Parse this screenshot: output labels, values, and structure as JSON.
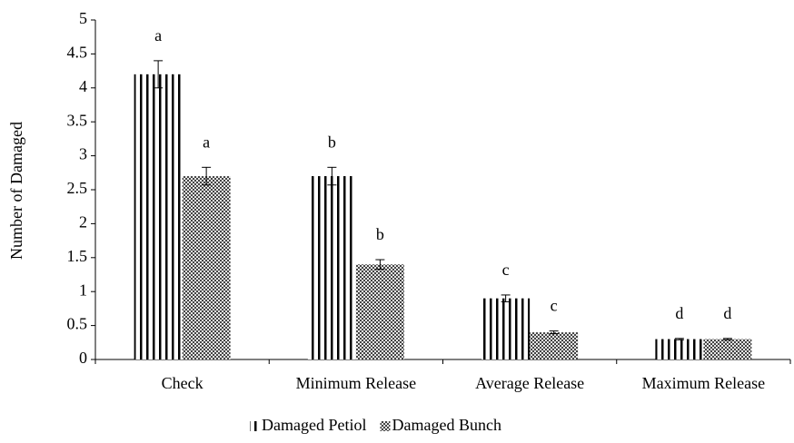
{
  "chart_data": {
    "type": "bar",
    "y_label": "Number of Damaged",
    "categories": [
      "Check",
      "Minimum Release",
      "Average Release",
      "Maximum Release"
    ],
    "series": [
      {
        "name": "Damaged Petiol",
        "color": "#000000",
        "pattern": "vertical-lines",
        "values": [
          4.2,
          2.7,
          0.9,
          0.3
        ],
        "errors": [
          0.2,
          0.13,
          0.05,
          0.01
        ],
        "letters": [
          "a",
          "b",
          "c",
          "d"
        ]
      },
      {
        "name": "Damaged Bunch",
        "color": "#000000",
        "pattern": "checker",
        "values": [
          2.7,
          1.4,
          0.4,
          0.3
        ],
        "errors": [
          0.13,
          0.07,
          0.02,
          0.01
        ],
        "letters": [
          "a",
          "b",
          "c",
          "d"
        ]
      }
    ],
    "ylim": [
      0,
      5
    ],
    "yticks": [
      0,
      0.5,
      1,
      1.5,
      2,
      2.5,
      3,
      3.5,
      4,
      4.5,
      5
    ],
    "grid": false,
    "legend": "bottom"
  }
}
